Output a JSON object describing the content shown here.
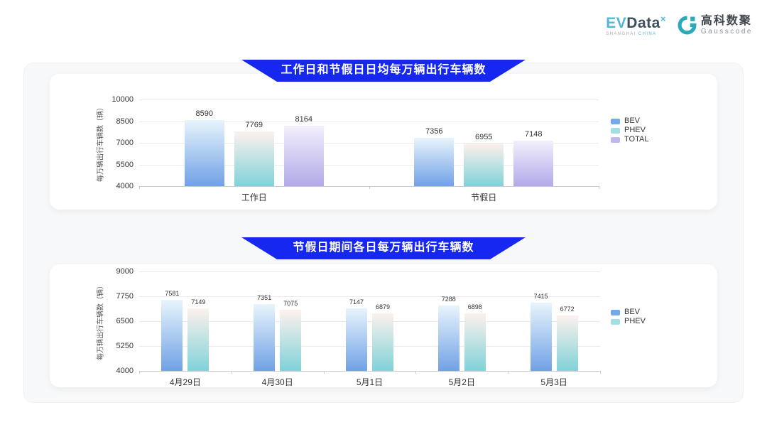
{
  "header": {
    "evdata": {
      "ev": "EV",
      "data": "Data",
      "sup": "×",
      "tagline_left": "SHANGHAI",
      "tagline_right": "CHINA"
    },
    "gausscode": {
      "name_cn": "高科数聚",
      "name_en": "Gausscode"
    }
  },
  "colors": {
    "banner_blue": "#1628f0",
    "logo_teal": "#2aa9bb",
    "logo_light_blue": "#53b7d8",
    "logo_dark": "#3d4f5e",
    "bev_gradient_top": "#e8f4fc",
    "bev_gradient_bottom": "#70a1e6",
    "phev_gradient_top": "#fdf1ed",
    "phev_gradient_bottom": "#80d2d8",
    "total_gradient_top": "#f3effc",
    "total_gradient_bottom": "#b1aae9"
  },
  "chart_data": [
    {
      "type": "bar",
      "title": "工作日和节假日日均每万辆出行车辆数",
      "ylabel": "每万辆出行车辆数（辆）",
      "xlabel": "",
      "categories": [
        "工作日",
        "节假日"
      ],
      "series": [
        {
          "name": "BEV",
          "values": [
            8590,
            7356
          ],
          "gradient": [
            "#e8f4fc",
            "#70a1e6"
          ],
          "legend_color": "#74aae8"
        },
        {
          "name": "PHEV",
          "values": [
            7769,
            6955
          ],
          "gradient": [
            "#fdf1ed",
            "#80d2d8"
          ],
          "legend_color": "#a6dfe3"
        },
        {
          "name": "TOTAL",
          "values": [
            8164,
            7148
          ],
          "gradient": [
            "#f3effc",
            "#b1aae9"
          ],
          "legend_color": "#c0b7ef"
        }
      ],
      "ylim": [
        4000,
        10000
      ],
      "yticks": [
        4000,
        5500,
        7000,
        8500,
        10000
      ],
      "grid": true,
      "legend_position": "right"
    },
    {
      "type": "bar",
      "title": "节假日期间各日每万辆出行车辆数",
      "ylabel": "每万辆出行车辆数（辆）",
      "xlabel": "",
      "categories": [
        "4月29日",
        "4月30日",
        "5月1日",
        "5月2日",
        "5月3日"
      ],
      "series": [
        {
          "name": "BEV",
          "values": [
            7581,
            7351,
            7147,
            7288,
            7415
          ],
          "gradient": [
            "#e8f4fc",
            "#70a1e6"
          ],
          "legend_color": "#74aae8"
        },
        {
          "name": "PHEV",
          "values": [
            7149,
            7075,
            6879,
            6898,
            6772
          ],
          "gradient": [
            "#fdf1ed",
            "#80d2d8"
          ],
          "legend_color": "#a6dfe3"
        }
      ],
      "ylim": [
        4000,
        9000
      ],
      "yticks": [
        4000,
        5250,
        6500,
        7750,
        9000
      ],
      "grid": true,
      "legend_position": "right"
    }
  ]
}
